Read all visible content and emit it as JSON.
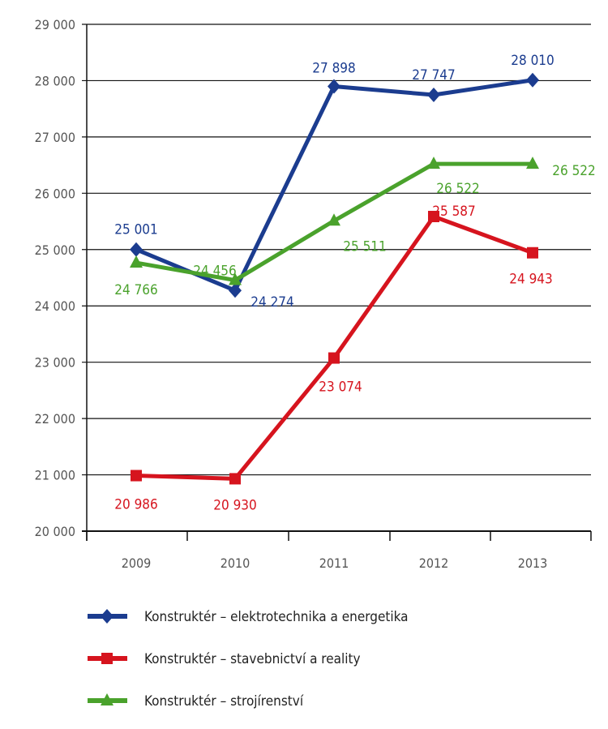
{
  "chart_data": {
    "type": "line",
    "categories": [
      "2009",
      "2010",
      "2011",
      "2012",
      "2013"
    ],
    "ylim": [
      20000,
      29000
    ],
    "yticks": [
      20000,
      21000,
      22000,
      23000,
      24000,
      25000,
      26000,
      27000,
      28000,
      29000
    ],
    "ytick_labels": [
      "20 000",
      "21 000",
      "22 000",
      "23 000",
      "24 000",
      "25 000",
      "26 000",
      "27 000",
      "28 000",
      "29 000"
    ],
    "grid": true,
    "legend_placement": "bottom",
    "series": [
      {
        "name": "Konstruktér – elektrotechnika a energetika",
        "color": "#1b3c8f",
        "marker": "diamond",
        "values": [
          25001,
          24274,
          27898,
          27747,
          28010
        ],
        "labels": [
          "25 001",
          "24 274",
          "27 898",
          "27 747",
          "28 010"
        ]
      },
      {
        "name": "Konstruktér – stavebnictví a reality",
        "color": "#d6141e",
        "marker": "square",
        "values": [
          20986,
          20930,
          23074,
          25587,
          24943
        ],
        "labels": [
          "20 986",
          "20 930",
          "23 074",
          "25 587",
          "24 943"
        ]
      },
      {
        "name": "Konstruktér – strojírenství",
        "color": "#4aa22c",
        "marker": "triangle",
        "values": [
          24766,
          24456,
          25511,
          26522,
          26522
        ],
        "labels": [
          "24 766",
          "24 456",
          "25 511",
          "26 522",
          "26 522"
        ]
      }
    ]
  }
}
